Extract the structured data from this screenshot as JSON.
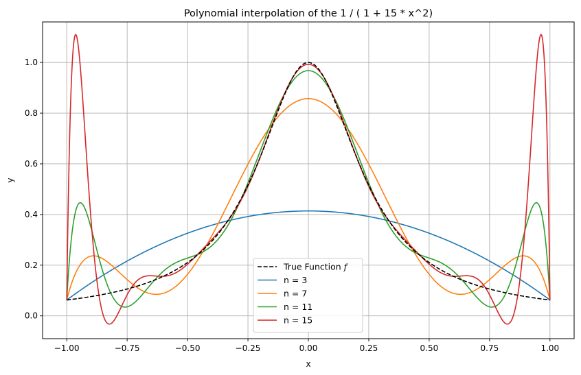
{
  "chart_data": {
    "type": "line",
    "title": "Polynomial interpolation of the 1 / ( 1 + 15 * x^2)",
    "xlabel": "x",
    "ylabel": "y",
    "xlim": [
      -1.1,
      1.1
    ],
    "ylim": [
      -0.09,
      1.16
    ],
    "x_ticks": [
      -1.0,
      -0.75,
      -0.5,
      -0.25,
      0.0,
      0.25,
      0.5,
      0.75,
      1.0
    ],
    "x_tick_labels": [
      "−1.00",
      "−0.75",
      "−0.50",
      "−0.25",
      "0.00",
      "0.25",
      "0.50",
      "0.75",
      "1.00"
    ],
    "y_ticks": [
      0.0,
      0.2,
      0.4,
      0.6,
      0.8,
      1.0
    ],
    "y_tick_labels": [
      "0.0",
      "0.2",
      "0.4",
      "0.6",
      "0.8",
      "1.0"
    ],
    "grid": true,
    "legend_position": "bottom-center",
    "function": "1 / (1 + 15 * x^2)",
    "domain": [
      -1.0,
      1.0
    ],
    "series": [
      {
        "name": "True Function f",
        "label_main": "True Function ",
        "label_italic": "f",
        "kind": "true",
        "color": "#000000",
        "dashed": true
      },
      {
        "name": "n = 3",
        "kind": "interp",
        "n": 3,
        "color": "#1f77b4",
        "dashed": false
      },
      {
        "name": "n = 7",
        "kind": "interp",
        "n": 7,
        "color": "#ff7f0e",
        "dashed": false
      },
      {
        "name": "n = 11",
        "kind": "interp",
        "n": 11,
        "color": "#2ca02c",
        "dashed": false
      },
      {
        "name": "n = 15",
        "kind": "interp",
        "n": 15,
        "color": "#d62728",
        "dashed": false
      }
    ]
  }
}
